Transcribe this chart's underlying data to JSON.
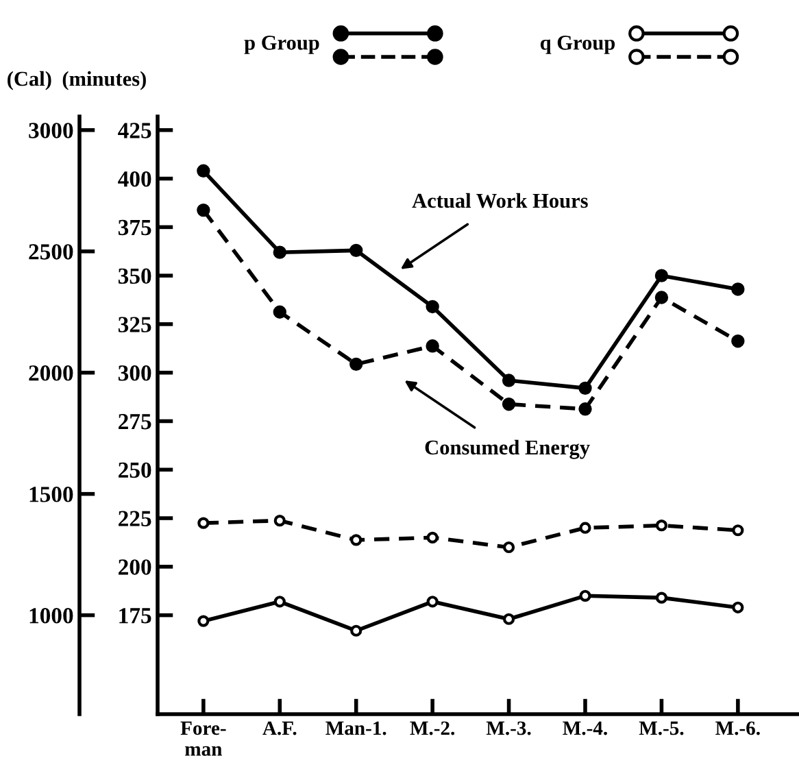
{
  "chart_data": {
    "type": "line",
    "categories": [
      "Fore-\nman",
      "A.F.",
      "Man-1.",
      "M.-2.",
      "M.-3.",
      "M.-4.",
      "M.-5.",
      "M.-6."
    ],
    "ylabel": "(minutes)",
    "y2label": "(Cal)",
    "ylim": [
      124,
      432
    ],
    "yticks": [
      175,
      200,
      225,
      250,
      275,
      300,
      325,
      350,
      375,
      400,
      425
    ],
    "y2lim": [
      592,
      3056
    ],
    "y2ticks": [
      1000,
      1500,
      2000,
      2500,
      3000
    ],
    "series": [
      {
        "name": "p Group",
        "color": "#000000",
        "line_style": "solid",
        "marker": "circle",
        "values": [
          404,
          362,
          363,
          334,
          296,
          292,
          350,
          343
        ]
      },
      {
        "color": "#000000",
        "line_style": "dashed",
        "marker": "circle",
        "axis": "y2",
        "values": [
          2670,
          2250,
          2035,
          2110,
          1870,
          1850,
          2310,
          2130
        ]
      },
      {
        "name": "q Group",
        "color": "#000000",
        "colors": [
          "#ffffff",
          "#ffffff",
          "#ffffff",
          "#ffffff",
          "#ffffff",
          "#ffffff",
          "#ffffff",
          "#ffffff"
        ],
        "line_style": "solid",
        "marker": "circle",
        "values": [
          172,
          182,
          167,
          182,
          173,
          185,
          184,
          179
        ]
      },
      {
        "color": "#000000",
        "colors": [
          "#ffffff",
          "#ffffff",
          "#ffffff",
          "#ffffff",
          "#ffffff",
          "#ffffff",
          "#ffffff",
          "#ffffff"
        ],
        "line_style": "dashed",
        "marker": "circle",
        "axis": "y2",
        "values": [
          1380,
          1390,
          1310,
          1320,
          1280,
          1360,
          1370,
          1350
        ]
      }
    ],
    "annotations": [
      "Actual Work Hours",
      "Consumed Energy"
    ],
    "legend": "top",
    "grid": false
  }
}
